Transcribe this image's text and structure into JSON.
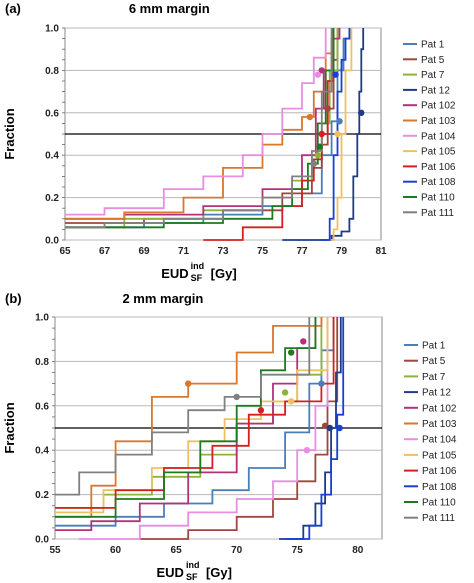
{
  "chart_data": [
    {
      "type": "line",
      "panel_label": "(a)",
      "title": "6 mm margin",
      "xlabel": "EUD",
      "xlabel_sup": "ind",
      "xlabel_sub": "SF",
      "xlabel_unit": "[Gy]",
      "ylabel": "Fraction",
      "xlim": [
        65,
        81
      ],
      "ylim": [
        0,
        1
      ],
      "xticks": [
        "65",
        "67",
        "69",
        "71",
        "73",
        "75",
        "77",
        "79",
        "81"
      ],
      "yticks": [
        "0.0",
        "0.2",
        "0.4",
        "0.6",
        "0.8",
        "1.0"
      ],
      "grid": "horizontal",
      "reference_line_y": 0.5,
      "legend_position": "right",
      "series": [
        {
          "name": "Pat 1",
          "color": "#4a7ebb",
          "x": [
            65.0,
            69.0,
            72.0,
            75.0,
            77.0,
            78.0,
            78.5,
            78.8,
            79.1,
            79.4
          ],
          "y": [
            0.06,
            0.08,
            0.12,
            0.16,
            0.22,
            0.4,
            0.56,
            0.8,
            0.95,
            1.0
          ],
          "marker": {
            "x": 78.9,
            "y": 0.56
          }
        },
        {
          "name": "Pat 5",
          "color": "#a0453f",
          "x": [
            65.0,
            69.0,
            73.0,
            76.0,
            77.5,
            78.0,
            78.3,
            78.6,
            78.8
          ],
          "y": [
            0.08,
            0.1,
            0.14,
            0.22,
            0.34,
            0.45,
            0.62,
            0.85,
            1.0
          ],
          "marker": {
            "x": 78.3,
            "y": 0.62
          }
        },
        {
          "name": "Pat 7",
          "color": "#8db33b",
          "x": [
            65.0,
            68.0,
            72.0,
            75.0,
            76.5,
            77.5,
            78.0,
            78.4,
            78.8
          ],
          "y": [
            0.06,
            0.1,
            0.14,
            0.2,
            0.28,
            0.4,
            0.55,
            0.8,
            1.0
          ],
          "marker": {
            "x": 77.8,
            "y": 0.4
          }
        },
        {
          "name": "Pat 12",
          "color": "#1f3a8a",
          "x": [
            76.0,
            78.5,
            79.0,
            79.4,
            79.6,
            79.8,
            79.9,
            80.0,
            80.1
          ],
          "y": [
            0.0,
            0.02,
            0.04,
            0.1,
            0.3,
            0.5,
            0.7,
            0.9,
            1.0
          ],
          "marker": {
            "x": 80.0,
            "y": 0.6
          }
        },
        {
          "name": "Pat 102",
          "color": "#b3307a",
          "x": [
            65.0,
            68.0,
            72.0,
            75.0,
            77.0,
            77.7,
            78.1,
            78.5,
            78.9
          ],
          "y": [
            0.1,
            0.12,
            0.16,
            0.24,
            0.4,
            0.62,
            0.8,
            0.95,
            1.0
          ],
          "marker": {
            "x": 78.0,
            "y": 0.8
          }
        },
        {
          "name": "Pat 103",
          "color": "#d9772a",
          "x": [
            65.0,
            68.0,
            71.0,
            73.0,
            75.0,
            76.0,
            77.0,
            77.6,
            78.2,
            78.6
          ],
          "y": [
            0.1,
            0.13,
            0.2,
            0.34,
            0.45,
            0.52,
            0.58,
            0.7,
            0.88,
            1.0
          ],
          "marker": {
            "x": 77.4,
            "y": 0.58
          }
        },
        {
          "name": "Pat 104",
          "color": "#e68fe0",
          "x": [
            65.0,
            67.0,
            70.0,
            72.0,
            74.0,
            75.0,
            76.0,
            77.0,
            77.6,
            78.2
          ],
          "y": [
            0.12,
            0.15,
            0.24,
            0.3,
            0.4,
            0.5,
            0.62,
            0.74,
            0.86,
            1.0
          ],
          "marker": {
            "x": 77.8,
            "y": 0.78
          }
        },
        {
          "name": "Pat 105",
          "color": "#f0c060",
          "x": [
            78.2,
            78.6,
            78.8,
            79.0,
            79.2,
            79.5
          ],
          "y": [
            0.0,
            0.05,
            0.2,
            0.5,
            0.8,
            1.0
          ],
          "marker": {
            "x": 78.8,
            "y": 0.5
          }
        },
        {
          "name": "Pat 106",
          "color": "#d42020",
          "x": [
            72.0,
            74.0,
            76.0,
            77.0,
            77.6,
            78.0,
            78.3,
            78.6
          ],
          "y": [
            0.0,
            0.06,
            0.16,
            0.28,
            0.38,
            0.5,
            0.75,
            1.0
          ],
          "marker": {
            "x": 78.0,
            "y": 0.5
          }
        },
        {
          "name": "Pat 108",
          "color": "#1a3fd6",
          "x": [
            78.0,
            78.4,
            78.6,
            78.8,
            79.0,
            79.2,
            79.4
          ],
          "y": [
            0.0,
            0.1,
            0.4,
            0.7,
            0.85,
            0.95,
            1.0
          ],
          "marker": {
            "x": 78.7,
            "y": 0.78
          }
        },
        {
          "name": "Pat 110",
          "color": "#1e7a1e",
          "x": [
            65.0,
            70.0,
            73.0,
            75.5,
            76.5,
            77.3,
            77.8,
            78.2,
            78.6
          ],
          "y": [
            0.06,
            0.08,
            0.1,
            0.16,
            0.24,
            0.36,
            0.55,
            0.8,
            1.0
          ],
          "marker": {
            "x": 77.9,
            "y": 0.44
          }
        },
        {
          "name": "Pat 111",
          "color": "#808080",
          "x": [
            65.0,
            67.0,
            70.0,
            73.0,
            75.0,
            76.5,
            77.5,
            78.0,
            78.5
          ],
          "y": [
            0.06,
            0.08,
            0.1,
            0.14,
            0.2,
            0.3,
            0.42,
            0.7,
            1.0
          ],
          "marker": {
            "x": 77.6,
            "y": 0.36
          }
        }
      ]
    },
    {
      "type": "line",
      "panel_label": "(b)",
      "title": "2 mm margin",
      "xlabel": "EUD",
      "xlabel_sup": "ind",
      "xlabel_sub": "SF",
      "xlabel_unit": "[Gy]",
      "ylabel": "Fraction",
      "xlim": [
        55,
        82
      ],
      "ylim": [
        0,
        1
      ],
      "xticks": [
        "55",
        "60",
        "65",
        "70",
        "75",
        "80"
      ],
      "yticks": [
        "0.0",
        "0.2",
        "0.4",
        "0.6",
        "0.8",
        "1.0"
      ],
      "grid": "horizontal",
      "reference_line_y": 0.5,
      "legend_position": "right",
      "series": [
        {
          "name": "Pat 1",
          "color": "#4a7ebb",
          "x": [
            55.0,
            60.0,
            64.0,
            68.0,
            71.0,
            74.0,
            76.0,
            77.0,
            78.0
          ],
          "y": [
            0.06,
            0.1,
            0.16,
            0.22,
            0.32,
            0.48,
            0.7,
            0.85,
            1.0
          ],
          "marker": {
            "x": 77.0,
            "y": 0.7
          }
        },
        {
          "name": "Pat 5",
          "color": "#a0453f",
          "x": [
            62.0,
            66.0,
            70.0,
            73.0,
            75.0,
            76.5,
            77.5,
            78.3
          ],
          "y": [
            0.0,
            0.04,
            0.1,
            0.18,
            0.26,
            0.38,
            0.62,
            1.0
          ],
          "marker": {
            "x": 77.3,
            "y": 0.51
          }
        },
        {
          "name": "Pat 7",
          "color": "#8db33b",
          "x": [
            55.0,
            59.0,
            63.0,
            67.0,
            70.0,
            73.0,
            75.0,
            77.0
          ],
          "y": [
            0.14,
            0.2,
            0.28,
            0.38,
            0.52,
            0.62,
            0.74,
            1.0
          ],
          "marker": {
            "x": 74.0,
            "y": 0.66
          }
        },
        {
          "name": "Pat 12",
          "color": "#1f3a8a",
          "x": [
            73.5,
            75.5,
            76.5,
            77.3,
            77.8,
            78.2,
            78.6
          ],
          "y": [
            0.0,
            0.06,
            0.16,
            0.3,
            0.5,
            0.75,
            1.0
          ],
          "marker": {
            "x": 77.7,
            "y": 0.5
          }
        },
        {
          "name": "Pat 102",
          "color": "#b3307a",
          "x": [
            55.0,
            58.0,
            62.0,
            66.0,
            70.0,
            73.0,
            75.0,
            76.5
          ],
          "y": [
            0.04,
            0.08,
            0.16,
            0.3,
            0.52,
            0.7,
            0.86,
            1.0
          ],
          "marker": {
            "x": 75.5,
            "y": 0.89
          }
        },
        {
          "name": "Pat 103",
          "color": "#d9772a",
          "x": [
            55.0,
            58.0,
            60.0,
            63.0,
            66.0,
            70.0,
            73.0,
            77.0
          ],
          "y": [
            0.1,
            0.24,
            0.44,
            0.64,
            0.7,
            0.84,
            0.96,
            1.0
          ],
          "marker": {
            "x": 66.0,
            "y": 0.7
          }
        },
        {
          "name": "Pat 104",
          "color": "#e68fe0",
          "x": [
            57.0,
            62.0,
            66.0,
            70.0,
            73.0,
            75.0,
            76.5,
            77.5
          ],
          "y": [
            0.0,
            0.06,
            0.12,
            0.18,
            0.26,
            0.4,
            0.6,
            1.0
          ],
          "marker": {
            "x": 75.8,
            "y": 0.4
          }
        },
        {
          "name": "Pat 105",
          "color": "#f0c060",
          "x": [
            55.0,
            59.0,
            63.0,
            66.0,
            69.0,
            72.0,
            75.0,
            77.5
          ],
          "y": [
            0.12,
            0.22,
            0.32,
            0.44,
            0.54,
            0.62,
            0.76,
            1.0
          ],
          "marker": {
            "x": 74.5,
            "y": 0.62
          }
        },
        {
          "name": "Pat 106",
          "color": "#d42020",
          "x": [
            55.0,
            60.0,
            64.0,
            68.0,
            71.0,
            74.0,
            77.0,
            78.0
          ],
          "y": [
            0.14,
            0.22,
            0.32,
            0.42,
            0.56,
            0.62,
            0.7,
            1.0
          ],
          "marker": {
            "x": 72.0,
            "y": 0.58
          }
        },
        {
          "name": "Pat 108",
          "color": "#1a3fd6",
          "x": [
            74.0,
            76.0,
            77.0,
            77.8,
            78.3,
            78.8
          ],
          "y": [
            0.0,
            0.06,
            0.2,
            0.36,
            0.56,
            1.0
          ],
          "marker": {
            "x": 78.5,
            "y": 0.5
          }
        },
        {
          "name": "Pat 110",
          "color": "#1e7a1e",
          "x": [
            55.0,
            60.0,
            64.0,
            67.0,
            70.0,
            72.0,
            74.0,
            76.5
          ],
          "y": [
            0.1,
            0.18,
            0.3,
            0.44,
            0.6,
            0.76,
            0.86,
            1.0
          ],
          "marker": {
            "x": 74.5,
            "y": 0.84
          }
        },
        {
          "name": "Pat 111",
          "color": "#808080",
          "x": [
            55.0,
            57.0,
            60.0,
            63.0,
            66.0,
            69.0,
            72.0,
            76.0
          ],
          "y": [
            0.2,
            0.3,
            0.38,
            0.48,
            0.58,
            0.64,
            0.74,
            1.0
          ],
          "marker": {
            "x": 70.0,
            "y": 0.64
          }
        }
      ]
    }
  ]
}
